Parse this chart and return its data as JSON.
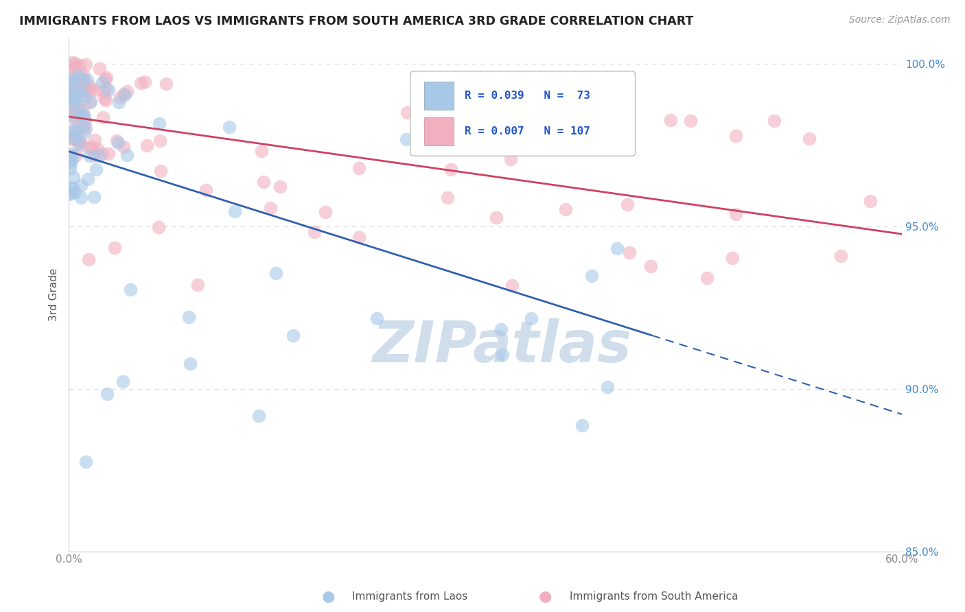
{
  "title": "IMMIGRANTS FROM LAOS VS IMMIGRANTS FROM SOUTH AMERICA 3RD GRADE CORRELATION CHART",
  "source": "Source: ZipAtlas.com",
  "ylabel": "3rd Grade",
  "xlim": [
    0.0,
    0.6
  ],
  "ylim": [
    0.865,
    1.008
  ],
  "blue_color": "#a8c8e8",
  "pink_color": "#f0b0c0",
  "blue_line_color": "#3060b0",
  "pink_line_color": "#d04060",
  "legend_text_color": "#2255cc",
  "watermark_color": "#c8d8e8",
  "background_color": "#ffffff",
  "grid_color": "#dddddd",
  "axis_color": "#cccccc",
  "ytick_color": "#4488cc",
  "xtick_color": "#888888",
  "title_color": "#222222",
  "source_color": "#999999",
  "seed_blue": 42,
  "seed_pink": 99,
  "n_blue": 73,
  "n_pink": 107,
  "blue_trend_start_x": 0.0,
  "blue_trend_end_x": 0.42,
  "blue_trend_dashed_start": 0.42,
  "blue_trend_dashed_end": 0.6,
  "pink_trend_start_x": 0.0,
  "pink_trend_end_x": 0.6
}
